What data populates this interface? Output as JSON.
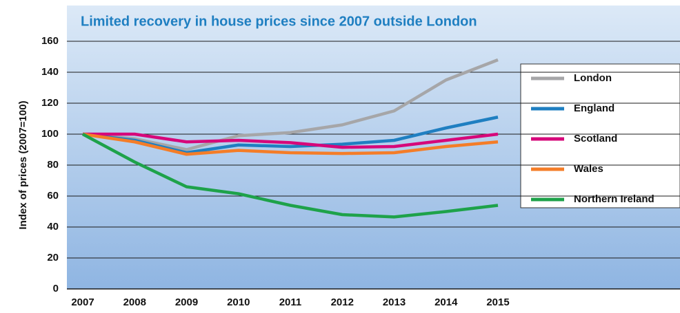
{
  "chart_data": {
    "type": "line",
    "title": "Limited recovery in house prices since 2007 outside London",
    "y_label": "Index of prices (2007=100)",
    "categories": [
      "2007",
      "2008",
      "2009",
      "2010",
      "2011",
      "2012",
      "2013",
      "2014",
      "2015"
    ],
    "series": [
      {
        "name": "London",
        "color": "#a6a6a8",
        "values": [
          100,
          97,
          90,
          99,
          101,
          106,
          115,
          135,
          148
        ]
      },
      {
        "name": "England",
        "color": "#1f7fc1",
        "values": [
          100,
          96,
          88,
          93,
          92,
          93.5,
          96,
          104,
          111
        ]
      },
      {
        "name": "Scotland",
        "color": "#d6087a",
        "values": [
          100,
          100,
          95,
          96,
          94.5,
          91.5,
          92,
          96,
          100
        ]
      },
      {
        "name": "Wales",
        "color": "#f47d28",
        "values": [
          100,
          95,
          87,
          89.5,
          88,
          87.5,
          88,
          92,
          95
        ]
      },
      {
        "name": "Northern Ireland",
        "color": "#1ea24a",
        "values": [
          100,
          82,
          66,
          61.5,
          54,
          48,
          46.5,
          50,
          54
        ]
      }
    ],
    "ylim": [
      0,
      160
    ],
    "yticks": [
      0,
      20,
      40,
      60,
      80,
      100,
      120,
      140,
      160
    ],
    "grid": true
  }
}
